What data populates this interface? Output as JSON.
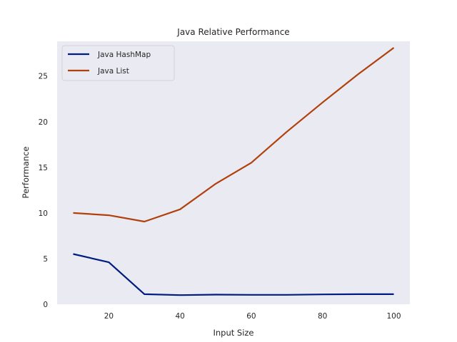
{
  "chart_data": {
    "type": "line",
    "title": "Java Relative Performance",
    "xlabel": "Input Size",
    "ylabel": "Performance",
    "x": [
      10,
      20,
      30,
      40,
      50,
      60,
      70,
      80,
      90,
      100
    ],
    "xlim": [
      5.5,
      104.5
    ],
    "ylim": [
      0,
      28.8
    ],
    "xticks": [
      20,
      40,
      60,
      80,
      100
    ],
    "yticks": [
      0,
      5,
      10,
      15,
      20,
      25
    ],
    "grid": false,
    "legend_position": "top-left",
    "background_color": "#eaeaf2",
    "series": [
      {
        "name": "Java HashMap",
        "color": "#001c7f",
        "values": [
          5.5,
          4.6,
          1.1,
          1.0,
          1.05,
          1.03,
          1.03,
          1.08,
          1.1,
          1.1
        ]
      },
      {
        "name": "Java List",
        "color": "#b1400d",
        "values": [
          10.0,
          9.75,
          9.05,
          10.4,
          13.2,
          15.5,
          18.9,
          22.1,
          25.2,
          28.1
        ]
      }
    ]
  }
}
